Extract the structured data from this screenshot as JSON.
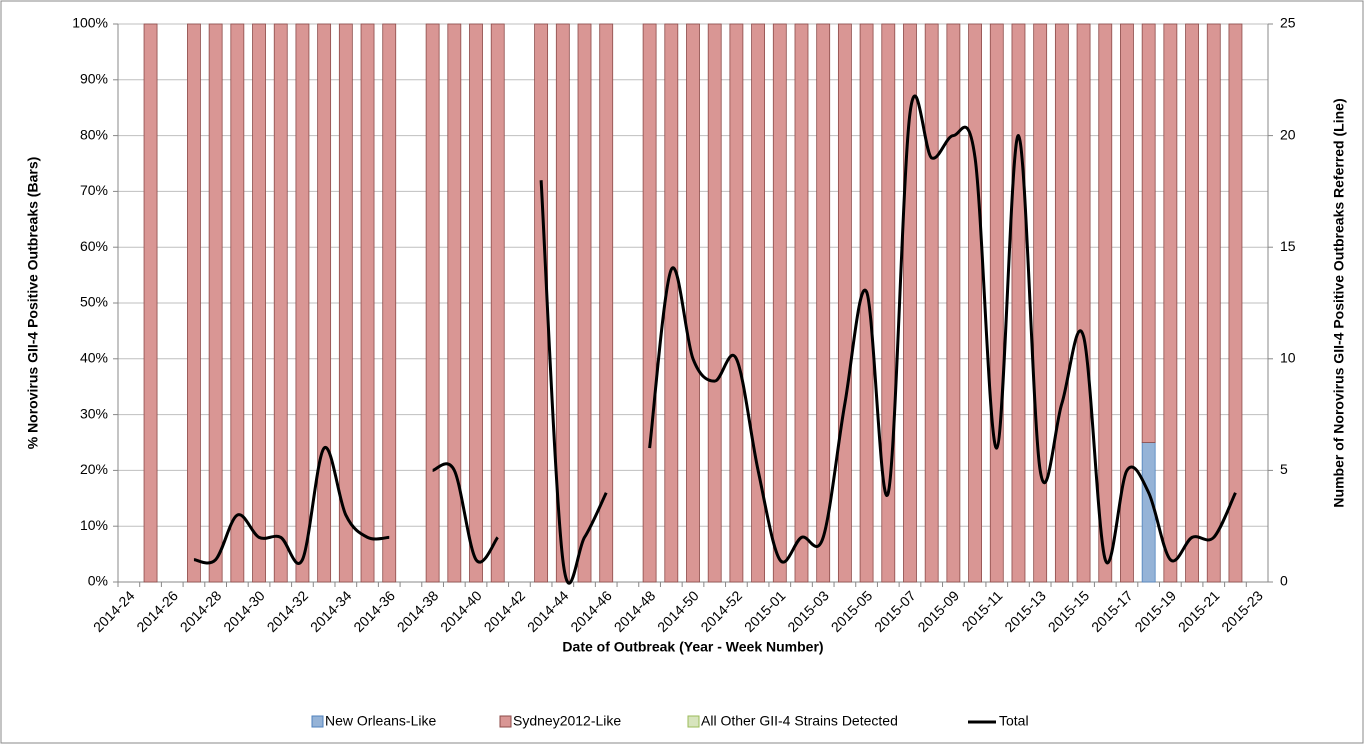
{
  "chart_data": {
    "type": "bar-line",
    "x_label": "Date of Outbreak (Year - Week Number)",
    "y_label": "% Norovirus GII-4 Positive Outbreaks (Bars)",
    "y2_label": "Number of Norovirus GII-4 Positive Outbreaks Referred (Line)",
    "categories": [
      "2014-24",
      null,
      "2014-26",
      null,
      "2014-28",
      null,
      "2014-30",
      null,
      "2014-32",
      null,
      "2014-34",
      null,
      "2014-36",
      null,
      "2014-38",
      null,
      "2014-40",
      null,
      "2014-42",
      null,
      "2014-44",
      null,
      "2014-46",
      null,
      "2014-48",
      null,
      "2014-50",
      null,
      "2014-52",
      null,
      "2015-01",
      null,
      "2015-03",
      null,
      "2015-05",
      null,
      "2015-07",
      null,
      "2015-09",
      null,
      "2015-11",
      null,
      "2015-13",
      null,
      "2015-15",
      null,
      "2015-17",
      null,
      "2015-19",
      null,
      "2015-21",
      null,
      "2015-23"
    ],
    "series": [
      {
        "name": "New Orleans-Like",
        "type": "bar",
        "color": "#95b3d7",
        "stroke": "#4f81bd",
        "values": [
          null,
          0,
          null,
          0,
          0,
          0,
          0,
          0,
          0,
          0,
          0,
          0,
          0,
          null,
          0,
          0,
          0,
          0,
          null,
          0,
          0,
          0,
          0,
          null,
          0,
          0,
          0,
          0,
          0,
          0,
          0,
          0,
          0,
          0,
          0,
          0,
          0,
          0,
          0,
          0,
          0,
          0,
          0,
          0,
          0,
          0,
          0,
          25,
          0,
          0,
          0,
          0,
          null
        ]
      },
      {
        "name": "Sydney2012-Like",
        "type": "bar",
        "color": "#d99694",
        "stroke": "#8c4b49",
        "values": [
          null,
          100,
          null,
          100,
          100,
          100,
          100,
          100,
          100,
          100,
          100,
          100,
          100,
          null,
          100,
          100,
          100,
          100,
          null,
          100,
          100,
          100,
          100,
          null,
          100,
          100,
          100,
          100,
          100,
          100,
          100,
          100,
          100,
          100,
          100,
          100,
          100,
          100,
          100,
          100,
          100,
          100,
          100,
          100,
          100,
          100,
          100,
          75,
          100,
          100,
          100,
          100,
          null
        ]
      },
      {
        "name": "All Other GII-4 Strains Detected",
        "type": "bar",
        "color": "#d7e4bd",
        "stroke": "#9bbb59",
        "values": [
          null,
          0,
          null,
          0,
          0,
          0,
          0,
          0,
          0,
          0,
          0,
          0,
          0,
          null,
          0,
          0,
          0,
          0,
          null,
          0,
          0,
          0,
          0,
          null,
          0,
          0,
          0,
          0,
          0,
          0,
          0,
          0,
          0,
          0,
          0,
          0,
          0,
          0,
          0,
          0,
          0,
          0,
          0,
          0,
          0,
          0,
          0,
          0,
          0,
          0,
          0,
          0,
          null
        ]
      },
      {
        "name": "Total",
        "type": "line",
        "axis": "y2",
        "color": "#000000",
        "values": [
          null,
          null,
          null,
          1,
          1,
          3,
          2,
          2,
          1,
          6,
          3,
          2,
          2,
          null,
          5,
          5,
          1,
          2,
          null,
          18,
          1,
          2,
          4,
          null,
          6,
          14,
          10,
          9,
          10,
          5,
          1,
          2,
          2,
          8,
          13,
          4,
          21,
          19,
          20,
          19,
          6,
          20,
          5,
          8,
          11,
          1,
          5,
          4,
          1,
          2,
          2,
          4,
          null
        ]
      }
    ],
    "ylim": [
      0,
      100
    ],
    "yticks": [
      {
        "value": 0,
        "label": "0%"
      },
      {
        "value": 10,
        "label": "10%"
      },
      {
        "value": 20,
        "label": "20%"
      },
      {
        "value": 30,
        "label": "30%"
      },
      {
        "value": 40,
        "label": "40%"
      },
      {
        "value": 50,
        "label": "50%"
      },
      {
        "value": 60,
        "label": "60%"
      },
      {
        "value": 70,
        "label": "70%"
      },
      {
        "value": 80,
        "label": "80%"
      },
      {
        "value": 90,
        "label": "90%"
      },
      {
        "value": 100,
        "label": "100%"
      }
    ],
    "y2lim": [
      0,
      25
    ],
    "y2ticks": [
      0,
      5,
      10,
      15,
      20,
      25
    ],
    "grid": true,
    "legend": "bottom"
  }
}
